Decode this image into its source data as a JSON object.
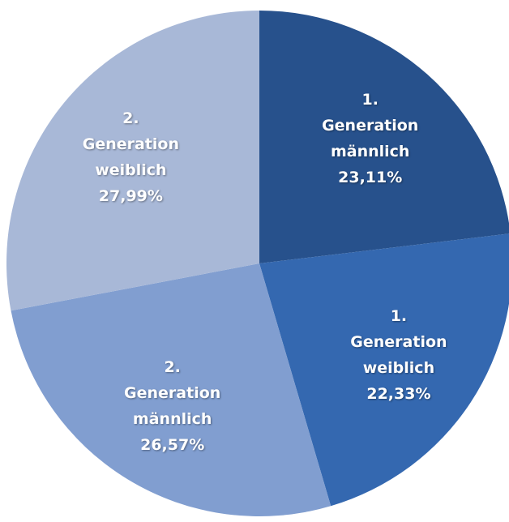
{
  "chart_data": {
    "type": "pie",
    "categories": [
      "1. Generation männlich",
      "1. Generation weiblich",
      "2. Generation männlich",
      "2. Generation weiblich"
    ],
    "values": [
      23.11,
      22.33,
      26.57,
      27.99
    ],
    "value_labels": [
      "23,11%",
      "22,33%",
      "26,57%",
      "27,99%"
    ],
    "colors": [
      "#27518c",
      "#3468b0",
      "#819ed0",
      "#a8b8d7"
    ]
  }
}
